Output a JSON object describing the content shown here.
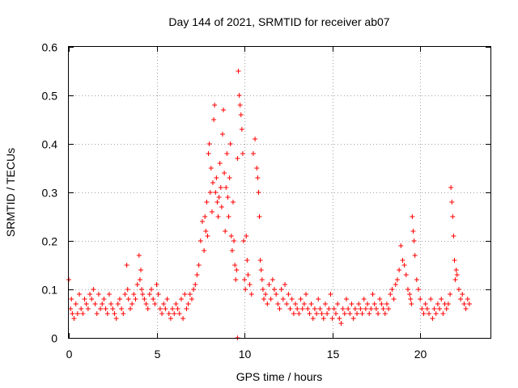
{
  "chart_data": {
    "type": "scatter",
    "title": "Day 144 of 2021, SRMTID for receiver ab07",
    "xlabel": "GPS time / hours",
    "ylabel": "SRMTID / TECUs",
    "xlim": [
      0,
      24
    ],
    "ylim": [
      0,
      0.6
    ],
    "xticks": [
      0,
      5,
      10,
      15,
      20
    ],
    "yticks": [
      0,
      0.1,
      0.2,
      0.3,
      0.4,
      0.5,
      0.6
    ],
    "xtick_labels": [
      "0",
      "5",
      "10",
      "15",
      "20"
    ],
    "ytick_labels": [
      "0",
      "0.1",
      "0.2",
      "0.3",
      "0.4",
      "0.5",
      "0.6"
    ],
    "grid": true,
    "marker": "+",
    "color": "#ff0000",
    "series": [
      {
        "name": "SRMTID",
        "x": [
          0.0,
          0.1,
          0.15,
          0.2,
          0.3,
          0.4,
          0.5,
          0.6,
          0.7,
          0.8,
          0.9,
          1.0,
          1.1,
          1.2,
          1.3,
          1.4,
          1.5,
          1.6,
          1.7,
          1.8,
          1.9,
          2.0,
          2.1,
          2.2,
          2.3,
          2.4,
          2.5,
          2.6,
          2.7,
          2.8,
          2.9,
          3.0,
          3.1,
          3.2,
          3.3,
          3.35,
          3.4,
          3.5,
          3.6,
          3.7,
          3.8,
          3.9,
          4.0,
          4.05,
          4.1,
          4.15,
          4.2,
          4.3,
          4.4,
          4.5,
          4.6,
          4.7,
          4.8,
          4.9,
          5.0,
          5.1,
          5.2,
          5.3,
          5.4,
          5.5,
          5.6,
          5.7,
          5.8,
          5.9,
          6.0,
          6.1,
          6.2,
          6.3,
          6.4,
          6.5,
          6.6,
          6.7,
          6.8,
          6.9,
          7.0,
          7.1,
          7.2,
          7.3,
          7.4,
          7.5,
          7.6,
          7.7,
          7.75,
          7.8,
          7.85,
          7.9,
          7.95,
          8.0,
          8.05,
          8.1,
          8.15,
          8.2,
          8.25,
          8.3,
          8.35,
          8.4,
          8.45,
          8.5,
          8.55,
          8.6,
          8.65,
          8.7,
          8.75,
          8.8,
          8.85,
          8.9,
          8.95,
          9.0,
          9.05,
          9.1,
          9.15,
          9.2,
          9.25,
          9.3,
          9.35,
          9.4,
          9.45,
          9.5,
          9.55,
          9.6,
          9.6,
          9.65,
          9.7,
          9.75,
          9.8,
          9.85,
          9.9,
          9.95,
          10.0,
          10.05,
          10.1,
          10.15,
          10.2,
          10.3,
          10.4,
          10.5,
          10.6,
          10.7,
          10.75,
          10.8,
          10.85,
          10.9,
          10.95,
          11.0,
          11.05,
          11.1,
          11.2,
          11.3,
          11.4,
          11.5,
          11.6,
          11.7,
          11.8,
          11.9,
          12.0,
          12.1,
          12.2,
          12.3,
          12.4,
          12.5,
          12.6,
          12.7,
          12.8,
          12.9,
          13.0,
          13.1,
          13.2,
          13.3,
          13.4,
          13.5,
          13.6,
          13.7,
          13.8,
          13.9,
          14.0,
          14.1,
          14.2,
          14.3,
          14.4,
          14.5,
          14.6,
          14.7,
          14.8,
          14.9,
          15.0,
          15.1,
          15.2,
          15.3,
          15.4,
          15.5,
          15.6,
          15.7,
          15.8,
          15.9,
          16.0,
          16.1,
          16.2,
          16.3,
          16.4,
          16.5,
          16.6,
          16.7,
          16.8,
          16.9,
          17.0,
          17.1,
          17.2,
          17.3,
          17.4,
          17.5,
          17.6,
          17.7,
          17.8,
          17.9,
          18.0,
          18.1,
          18.2,
          18.3,
          18.4,
          18.5,
          18.6,
          18.7,
          18.8,
          18.9,
          19.0,
          19.1,
          19.2,
          19.3,
          19.4,
          19.45,
          19.5,
          19.55,
          19.6,
          19.65,
          19.7,
          19.8,
          19.9,
          20.0,
          20.1,
          20.2,
          20.3,
          20.4,
          20.5,
          20.6,
          20.7,
          20.8,
          20.9,
          21.0,
          21.1,
          21.2,
          21.3,
          21.4,
          21.5,
          21.6,
          21.7,
          21.75,
          21.8,
          21.85,
          21.9,
          21.95,
          22.0,
          22.05,
          22.1,
          22.2,
          22.3,
          22.4,
          22.5,
          22.6,
          22.7,
          22.8
        ],
        "y": [
          0.12,
          0.06,
          0.08,
          0.05,
          0.04,
          0.07,
          0.05,
          0.09,
          0.06,
          0.05,
          0.08,
          0.07,
          0.06,
          0.09,
          0.08,
          0.1,
          0.07,
          0.05,
          0.09,
          0.06,
          0.07,
          0.08,
          0.06,
          0.05,
          0.09,
          0.07,
          0.06,
          0.05,
          0.04,
          0.07,
          0.08,
          0.06,
          0.05,
          0.09,
          0.15,
          0.1,
          0.08,
          0.06,
          0.07,
          0.09,
          0.08,
          0.11,
          0.17,
          0.12,
          0.14,
          0.1,
          0.09,
          0.08,
          0.07,
          0.06,
          0.09,
          0.1,
          0.08,
          0.07,
          0.11,
          0.09,
          0.06,
          0.05,
          0.07,
          0.06,
          0.08,
          0.05,
          0.04,
          0.06,
          0.05,
          0.07,
          0.06,
          0.05,
          0.08,
          0.04,
          0.09,
          0.06,
          0.07,
          0.09,
          0.08,
          0.1,
          0.11,
          0.13,
          0.15,
          0.2,
          0.24,
          0.18,
          0.25,
          0.22,
          0.28,
          0.21,
          0.38,
          0.4,
          0.3,
          0.35,
          0.26,
          0.32,
          0.45,
          0.48,
          0.3,
          0.33,
          0.28,
          0.25,
          0.29,
          0.36,
          0.31,
          0.27,
          0.42,
          0.47,
          0.34,
          0.22,
          0.31,
          0.38,
          0.29,
          0.25,
          0.33,
          0.4,
          0.21,
          0.18,
          0.28,
          0.2,
          0.15,
          0.12,
          0.14,
          0.37,
          0.0,
          0.55,
          0.5,
          0.48,
          0.46,
          0.43,
          0.38,
          0.2,
          0.12,
          0.1,
          0.21,
          0.16,
          0.13,
          0.11,
          0.09,
          0.38,
          0.41,
          0.35,
          0.33,
          0.3,
          0.25,
          0.16,
          0.14,
          0.12,
          0.1,
          0.08,
          0.09,
          0.07,
          0.11,
          0.08,
          0.12,
          0.1,
          0.09,
          0.07,
          0.06,
          0.1,
          0.08,
          0.11,
          0.07,
          0.09,
          0.06,
          0.08,
          0.05,
          0.07,
          0.06,
          0.05,
          0.08,
          0.06,
          0.07,
          0.09,
          0.06,
          0.05,
          0.07,
          0.04,
          0.06,
          0.05,
          0.08,
          0.06,
          0.05,
          0.04,
          0.07,
          0.05,
          0.06,
          0.09,
          0.04,
          0.06,
          0.05,
          0.07,
          0.04,
          0.03,
          0.06,
          0.05,
          0.08,
          0.06,
          0.05,
          0.07,
          0.04,
          0.06,
          0.05,
          0.07,
          0.06,
          0.05,
          0.08,
          0.06,
          0.07,
          0.05,
          0.06,
          0.09,
          0.07,
          0.06,
          0.05,
          0.08,
          0.07,
          0.06,
          0.05,
          0.07,
          0.06,
          0.09,
          0.1,
          0.08,
          0.11,
          0.12,
          0.14,
          0.19,
          0.16,
          0.15,
          0.13,
          0.1,
          0.09,
          0.08,
          0.07,
          0.25,
          0.22,
          0.2,
          0.17,
          0.12,
          0.1,
          0.08,
          0.06,
          0.05,
          0.07,
          0.06,
          0.05,
          0.08,
          0.04,
          0.06,
          0.05,
          0.07,
          0.06,
          0.08,
          0.05,
          0.07,
          0.06,
          0.07,
          0.09,
          0.31,
          0.28,
          0.25,
          0.21,
          0.16,
          0.12,
          0.14,
          0.13,
          0.1,
          0.08,
          0.09,
          0.07,
          0.06,
          0.08,
          0.07
        ]
      }
    ]
  }
}
